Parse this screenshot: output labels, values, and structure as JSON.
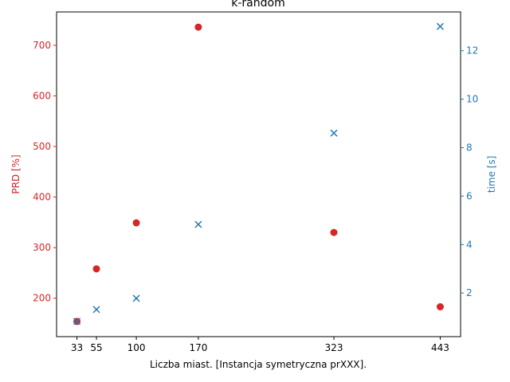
{
  "chart_data": {
    "type": "scatter",
    "title": "k-random",
    "xlabel": "Liczba miast. [Instancja symetryczna prXXX].",
    "ylabel_left": "PRD [%]",
    "ylabel_right": "time [s]",
    "x": [
      33,
      55,
      100,
      170,
      323,
      443
    ],
    "x_tick_labels": [
      "33",
      "55",
      "100",
      "170",
      "323",
      "443"
    ],
    "xlim": [
      10,
      466
    ],
    "series": [
      {
        "axis": "left",
        "marker": "circle",
        "color": "#d62728",
        "values": [
          154,
          258,
          349,
          736,
          330,
          183
        ]
      },
      {
        "axis": "right",
        "marker": "x",
        "color": "#1f77b4",
        "values": [
          0.83,
          1.32,
          1.78,
          4.83,
          8.6,
          13.0
        ]
      }
    ],
    "ylim_left": [
      124,
      766
    ],
    "yticks_left": [
      200,
      300,
      400,
      500,
      600,
      700
    ],
    "ylim_right": [
      0.2,
      13.6
    ],
    "yticks_right": [
      2,
      4,
      6,
      8,
      10,
      12
    ],
    "grid": false,
    "legend": "none",
    "colors": {
      "left_axis": "#d62728",
      "right_axis": "#1f77b4",
      "frame": "#000000"
    }
  }
}
